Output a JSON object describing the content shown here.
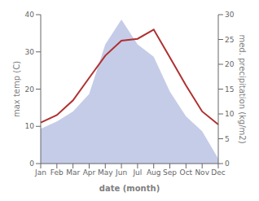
{
  "chart_data": {
    "type": "line",
    "xlabel": "date (month)",
    "ylabel": "max temp (C)",
    "y2label": "med. precipitation (kg/m2)",
    "categories": [
      "Jan",
      "Feb",
      "Mar",
      "Apr",
      "May",
      "Jun",
      "Jul",
      "Aug",
      "Sep",
      "Oct",
      "Nov",
      "Dec"
    ],
    "series": [
      {
        "name": "med. precipitation (kg/m2)",
        "type": "area",
        "axis": "y2",
        "color": "#c5cce8",
        "values": [
          7.0,
          8.5,
          10.5,
          14.0,
          24.0,
          29.0,
          24.0,
          21.5,
          14.5,
          9.5,
          6.5,
          1.0
        ]
      },
      {
        "name": "max temp (C)",
        "type": "line",
        "color": "#b03030",
        "values": [
          11.0,
          13.0,
          17.0,
          23.0,
          29.0,
          33.0,
          33.5,
          36.0,
          28.5,
          21.0,
          14.0,
          10.5
        ]
      }
    ],
    "ylim": [
      0,
      40
    ],
    "yticks": [
      0,
      10,
      20,
      30,
      40
    ],
    "y2lim": [
      0,
      30
    ],
    "y2ticks": [
      0,
      5,
      10,
      15,
      20,
      25,
      30
    ],
    "grid": false
  }
}
